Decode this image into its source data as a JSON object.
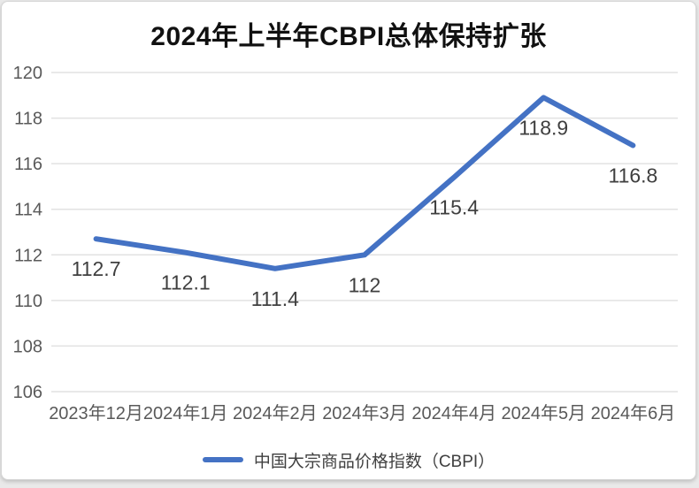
{
  "chart_data": {
    "type": "line",
    "title": "2024年上半年CBPI总体保持扩张",
    "categories": [
      "2023年12月",
      "2024年1月",
      "2024年2月",
      "2024年3月",
      "2024年4月",
      "2024年5月",
      "2024年6月"
    ],
    "series": [
      {
        "name": "中国大宗商品价格指数（CBPI）",
        "values": [
          112.7,
          112.1,
          111.4,
          112,
          115.4,
          118.9,
          116.8
        ]
      }
    ],
    "data_labels": [
      "112.7",
      "112.1",
      "111.4",
      "112",
      "115.4",
      "118.9",
      "116.8"
    ],
    "xlabel": "",
    "ylabel": "",
    "ylim": [
      106,
      120
    ],
    "yticks": [
      106,
      108,
      110,
      112,
      114,
      116,
      118,
      120
    ],
    "grid": true,
    "legend_position": "bottom",
    "colors": {
      "line": "#4472C4",
      "data_label": "#3f3f3f",
      "axis_label": "#595959",
      "gridline": "#e2e2e2",
      "title": "#111111"
    }
  }
}
